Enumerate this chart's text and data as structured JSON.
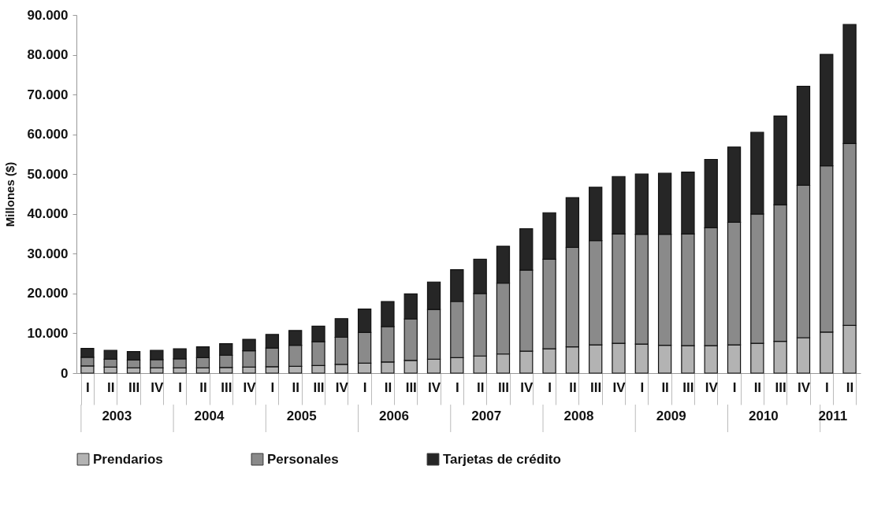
{
  "chart_data": {
    "type": "bar",
    "stacked": true,
    "ylabel": "Millones ($)",
    "categories": [
      "I",
      "II",
      "III",
      "IV",
      "I",
      "II",
      "III",
      "IV",
      "I",
      "II",
      "III",
      "IV",
      "I",
      "II",
      "III",
      "IV",
      "I",
      "II",
      "III",
      "IV",
      "I",
      "II",
      "III",
      "IV",
      "I",
      "II",
      "III",
      "IV",
      "I",
      "II",
      "III",
      "IV",
      "I",
      "II"
    ],
    "annotations": [
      "2003",
      "2004",
      "2005",
      "2006",
      "2007",
      "2008",
      "2009",
      "2010",
      "2011"
    ],
    "series": [
      {
        "name": "Prendarios",
        "color": "#b3b3b3",
        "values": [
          1800,
          1500,
          1300,
          1300,
          1300,
          1300,
          1400,
          1500,
          1600,
          1700,
          1900,
          2200,
          2500,
          2800,
          3200,
          3500,
          3900,
          4300,
          4800,
          5500,
          6100,
          6600,
          7100,
          7500,
          7300,
          7000,
          6900,
          6900,
          7100,
          7500,
          8000,
          8900,
          10300,
          12000
        ]
      },
      {
        "name": "Personales",
        "color": "#8a8a8a",
        "values": [
          2200,
          2000,
          2000,
          2100,
          2300,
          2600,
          3100,
          4100,
          4700,
          5300,
          6000,
          6800,
          7700,
          8900,
          10400,
          12500,
          14100,
          15700,
          17800,
          20400,
          22500,
          25000,
          26200,
          27500,
          27600,
          27900,
          28100,
          29600,
          30800,
          32500,
          34300,
          38300,
          41800,
          45700
        ]
      },
      {
        "name": "Tarjetas de crédito",
        "color": "#262626",
        "values": [
          2200,
          2200,
          2100,
          2300,
          2500,
          2700,
          2900,
          2900,
          3400,
          3700,
          3900,
          4700,
          5900,
          6300,
          6300,
          6900,
          8000,
          8600,
          9300,
          10400,
          11700,
          12500,
          13400,
          14400,
          15100,
          15300,
          15500,
          17200,
          18900,
          20500,
          22300,
          24900,
          28000,
          29900
        ]
      }
    ],
    "ylim": [
      0,
      90000
    ],
    "yticks": [
      0,
      {
        "value": 10000,
        "label": "10.000"
      },
      {
        "value": 20000,
        "label": "20.000"
      },
      {
        "value": 30000,
        "label": "30.000"
      },
      {
        "value": 40000,
        "label": "40.000"
      },
      {
        "value": 50000,
        "label": "50.000"
      },
      {
        "value": 60000,
        "label": "60.000"
      },
      {
        "value": 70000,
        "label": "70.000"
      },
      {
        "value": 80000,
        "label": "80.000"
      },
      {
        "value": 90000,
        "label": "90.000"
      }
    ],
    "grid": false,
    "legend": "bottom"
  }
}
